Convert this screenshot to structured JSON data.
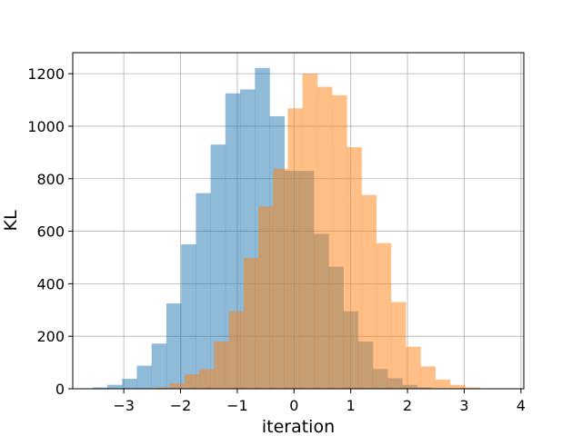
{
  "chart_data": {
    "type": "bar",
    "title": "",
    "xlabel": "iteration",
    "ylabel": "KL",
    "xlim": [
      -3.9,
      4.05
    ],
    "ylim": [
      0,
      1280
    ],
    "grid": true,
    "xticks": [
      -3,
      -2,
      -1,
      0,
      1,
      2,
      3,
      4
    ],
    "xtick_labels": [
      "−3",
      "−2",
      "−1",
      "0",
      "1",
      "2",
      "3",
      "4"
    ],
    "yticks": [
      0,
      200,
      400,
      600,
      800,
      1000,
      1200
    ],
    "ytick_labels": [
      "0",
      "200",
      "400",
      "600",
      "800",
      "1000",
      "1200"
    ],
    "series": [
      {
        "color": "#1f77b4",
        "opacity": 0.5,
        "bins": [
          {
            "x0": -3.55,
            "x1": -3.29,
            "value": 5
          },
          {
            "x0": -3.29,
            "x1": -3.03,
            "value": 15
          },
          {
            "x0": -3.03,
            "x1": -2.77,
            "value": 38
          },
          {
            "x0": -2.77,
            "x1": -2.51,
            "value": 88
          },
          {
            "x0": -2.51,
            "x1": -2.25,
            "value": 172
          },
          {
            "x0": -2.25,
            "x1": -1.99,
            "value": 325
          },
          {
            "x0": -1.99,
            "x1": -1.73,
            "value": 550
          },
          {
            "x0": -1.73,
            "x1": -1.47,
            "value": 745
          },
          {
            "x0": -1.47,
            "x1": -1.21,
            "value": 930
          },
          {
            "x0": -1.21,
            "x1": -0.95,
            "value": 1125
          },
          {
            "x0": -0.95,
            "x1": -0.69,
            "value": 1140
          },
          {
            "x0": -0.69,
            "x1": -0.43,
            "value": 1222
          },
          {
            "x0": -0.43,
            "x1": -0.17,
            "value": 1038
          },
          {
            "x0": -0.17,
            "x1": 0.09,
            "value": 830
          },
          {
            "x0": 0.09,
            "x1": 0.35,
            "value": 830
          },
          {
            "x0": 0.35,
            "x1": 0.61,
            "value": 590
          },
          {
            "x0": 0.61,
            "x1": 0.87,
            "value": 465
          },
          {
            "x0": 0.87,
            "x1": 1.13,
            "value": 295
          },
          {
            "x0": 1.13,
            "x1": 1.39,
            "value": 180
          },
          {
            "x0": 1.39,
            "x1": 1.65,
            "value": 75
          },
          {
            "x0": 1.65,
            "x1": 1.91,
            "value": 40
          },
          {
            "x0": 1.91,
            "x1": 2.17,
            "value": 15
          },
          {
            "x0": 2.17,
            "x1": 2.43,
            "value": 5
          }
        ]
      },
      {
        "color": "#ff7f0e",
        "opacity": 0.5,
        "bins": [
          {
            "x0": -2.45,
            "x1": -2.19,
            "value": 5
          },
          {
            "x0": -2.19,
            "x1": -1.93,
            "value": 20
          },
          {
            "x0": -1.93,
            "x1": -1.67,
            "value": 55
          },
          {
            "x0": -1.67,
            "x1": -1.41,
            "value": 75
          },
          {
            "x0": -1.41,
            "x1": -1.15,
            "value": 180
          },
          {
            "x0": -1.15,
            "x1": -0.89,
            "value": 295
          },
          {
            "x0": -0.89,
            "x1": -0.63,
            "value": 498
          },
          {
            "x0": -0.63,
            "x1": -0.37,
            "value": 695
          },
          {
            "x0": -0.37,
            "x1": -0.11,
            "value": 838
          },
          {
            "x0": -0.11,
            "x1": 0.15,
            "value": 1068
          },
          {
            "x0": 0.15,
            "x1": 0.41,
            "value": 1200
          },
          {
            "x0": 0.41,
            "x1": 0.67,
            "value": 1150
          },
          {
            "x0": 0.67,
            "x1": 0.93,
            "value": 1118
          },
          {
            "x0": 0.93,
            "x1": 1.19,
            "value": 920
          },
          {
            "x0": 1.19,
            "x1": 1.45,
            "value": 738
          },
          {
            "x0": 1.45,
            "x1": 1.71,
            "value": 555
          },
          {
            "x0": 1.71,
            "x1": 1.97,
            "value": 330
          },
          {
            "x0": 1.97,
            "x1": 2.23,
            "value": 160
          },
          {
            "x0": 2.23,
            "x1": 2.49,
            "value": 85
          },
          {
            "x0": 2.49,
            "x1": 2.75,
            "value": 35
          },
          {
            "x0": 2.75,
            "x1": 3.01,
            "value": 15
          },
          {
            "x0": 3.01,
            "x1": 3.27,
            "value": 5
          }
        ]
      }
    ]
  }
}
